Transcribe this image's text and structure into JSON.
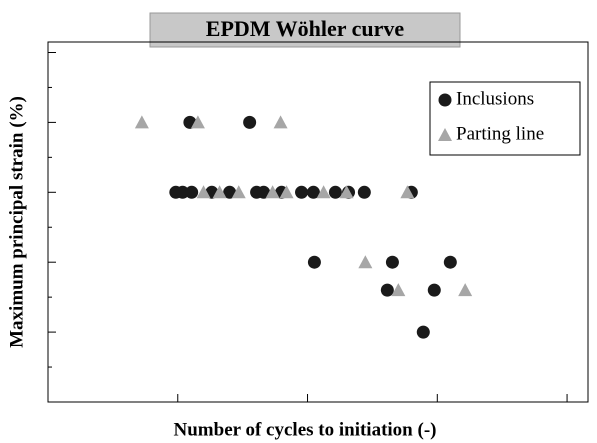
{
  "chart_data": {
    "type": "scatter",
    "title": "EPDM Wöhler curve",
    "xlabel": "Number of cycles to initiation (-)",
    "ylabel": "Maximum principal strain (%)",
    "xscale": "log",
    "xlim": [
      1000,
      14500000
    ],
    "xticks": [
      1000,
      10000,
      100000,
      1000000,
      10000000
    ],
    "ylim": [
      0,
      103
    ],
    "yticks": [
      0,
      10,
      20,
      30,
      40,
      50,
      60,
      70,
      80,
      90,
      100
    ],
    "legend": "upper right",
    "series": [
      {
        "name": "Inclusions",
        "color": "#1a1a1a",
        "marker": "circle",
        "x": [
          12400,
          35800,
          9660,
          10900,
          12800,
          18300,
          25100,
          40500,
          45900,
          63100,
          89900,
          111000,
          164000,
          207000,
          274000,
          631000,
          113000,
          451000,
          1260000,
          412000,
          948000,
          780000
        ],
        "values": [
          80,
          80,
          60,
          60,
          60,
          60,
          60,
          60,
          60,
          60,
          60,
          60,
          60,
          60,
          60,
          60,
          40,
          40,
          40,
          32,
          32,
          20
        ]
      },
      {
        "name": "Parting line",
        "color": "#a6a6a6",
        "marker": "triangle",
        "x": [
          5290,
          14300,
          62000,
          15800,
          21000,
          29500,
          53800,
          68900,
          133000,
          200000,
          588000,
          279000,
          501000,
          1640000
        ],
        "values": [
          80,
          80,
          80,
          60,
          60,
          60,
          60,
          60,
          60,
          60,
          60,
          40,
          32,
          32
        ]
      }
    ]
  }
}
